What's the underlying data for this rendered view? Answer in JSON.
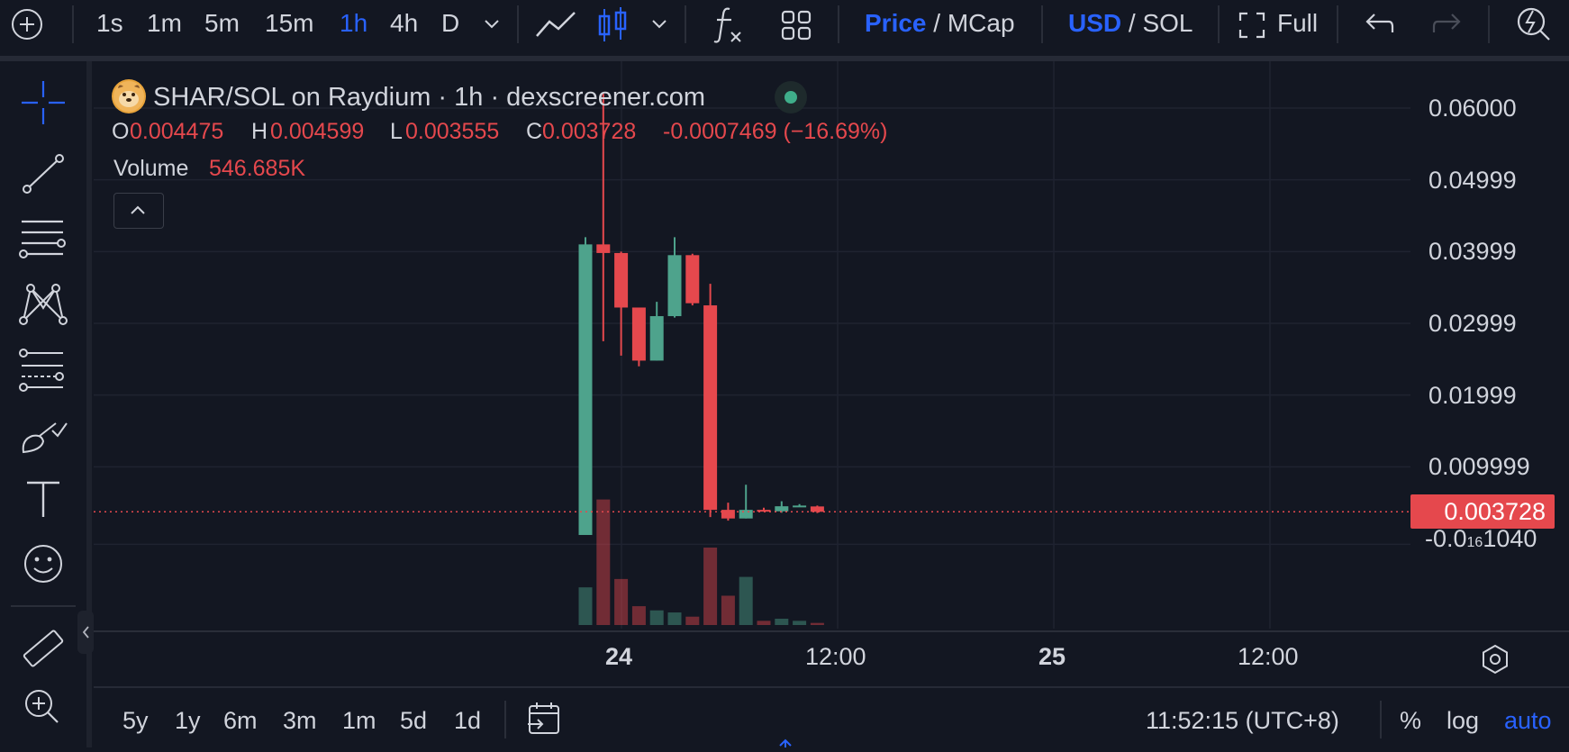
{
  "toolbar": {
    "intervals": [
      {
        "label": "1s",
        "active": false
      },
      {
        "label": "1m",
        "active": false
      },
      {
        "label": "5m",
        "active": false
      },
      {
        "label": "15m",
        "active": false
      },
      {
        "label": "1h",
        "active": true
      },
      {
        "label": "4h",
        "active": false
      },
      {
        "label": "D",
        "active": false
      }
    ],
    "price_label": "Price",
    "mcap_label": "MCap",
    "slash": "/",
    "usd_label": "USD",
    "sol_label": "SOL",
    "full_label": "Full"
  },
  "legend": {
    "title": "SHAR/SOL on Raydium · 1h · dexscreener.com",
    "o_label": "O",
    "o_value": "0.004475",
    "h_label": "H",
    "h_value": "0.004599",
    "l_label": "L",
    "l_value": "0.003555",
    "c_label": "C",
    "c_value": "0.003728",
    "change": "-0.0007469 (−16.69%)",
    "volume_label": "Volume",
    "volume_value": "546.685K"
  },
  "price_axis": {
    "ticks": [
      "0.06000",
      "0.04999",
      "0.03999",
      "0.02999",
      "0.01999",
      "0.009999"
    ],
    "current_price": "0.003728",
    "below_label_prefix": "-0.0",
    "below_label_sub": "16",
    "below_label_suffix": "1040"
  },
  "time_axis": {
    "ticks": [
      {
        "label": "24",
        "bold": true
      },
      {
        "label": "12:00",
        "bold": false
      },
      {
        "label": "25",
        "bold": true
      },
      {
        "label": "12:00",
        "bold": false
      }
    ]
  },
  "bottom": {
    "ranges": [
      "5y",
      "1y",
      "6m",
      "3m",
      "1m",
      "5d",
      "1d"
    ],
    "clock": "11:52:15 (UTC+8)",
    "percent_label": "%",
    "log_label": "log",
    "auto_label": "auto"
  },
  "colors": {
    "up": "#4ea38c",
    "down": "#e5484d",
    "accent": "#2962ff",
    "background": "#131722"
  },
  "chart_data": {
    "type": "candlestick",
    "price_axis_unit": "SOL",
    "ylim": [
      -0.00104,
      0.06
    ],
    "candles": [
      {
        "o": 0.0005,
        "h": 0.042,
        "l": 0.0005,
        "c": 0.041,
        "v": 0.18
      },
      {
        "o": 0.041,
        "h": 0.062,
        "l": 0.0275,
        "c": 0.0398,
        "v": 0.6
      },
      {
        "o": 0.0398,
        "h": 0.04,
        "l": 0.0255,
        "c": 0.0322,
        "v": 0.22
      },
      {
        "o": 0.0322,
        "h": 0.0322,
        "l": 0.024,
        "c": 0.0248,
        "v": 0.09
      },
      {
        "o": 0.0248,
        "h": 0.033,
        "l": 0.0248,
        "c": 0.031,
        "v": 0.07
      },
      {
        "o": 0.031,
        "h": 0.042,
        "l": 0.0308,
        "c": 0.0395,
        "v": 0.06
      },
      {
        "o": 0.0395,
        "h": 0.0397,
        "l": 0.0325,
        "c": 0.0328,
        "v": 0.04
      },
      {
        "o": 0.0325,
        "h": 0.0355,
        "l": 0.003,
        "c": 0.004,
        "v": 0.37
      },
      {
        "o": 0.004,
        "h": 0.005,
        "l": 0.0025,
        "c": 0.0028,
        "v": 0.14
      },
      {
        "o": 0.0028,
        "h": 0.0075,
        "l": 0.0028,
        "c": 0.004,
        "v": 0.23
      },
      {
        "o": 0.004,
        "h": 0.0043,
        "l": 0.0038,
        "c": 0.0039,
        "v": 0.02
      },
      {
        "o": 0.0038,
        "h": 0.0052,
        "l": 0.0036,
        "c": 0.0045,
        "v": 0.03
      },
      {
        "o": 0.0045,
        "h": 0.0048,
        "l": 0.0044,
        "c": 0.0046,
        "v": 0.02
      },
      {
        "o": 0.004475,
        "h": 0.004599,
        "l": 0.003555,
        "c": 0.003728,
        "v": 0.01
      }
    ]
  }
}
